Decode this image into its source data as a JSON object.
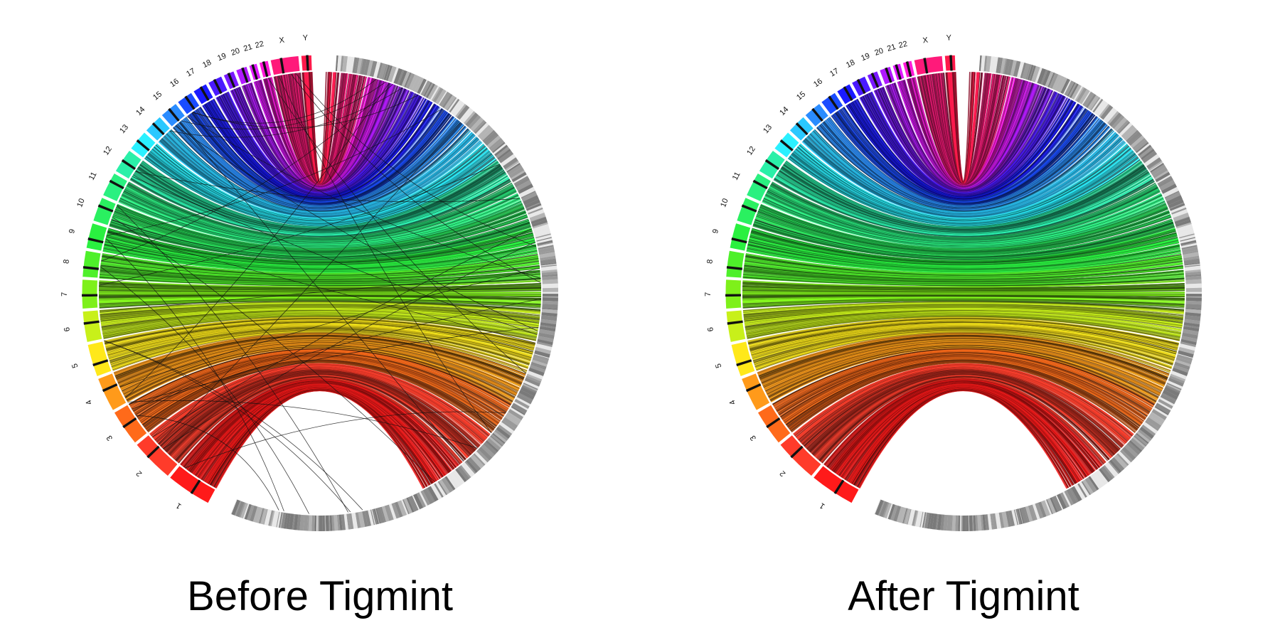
{
  "panels": [
    {
      "title": "Before Tigmint",
      "chromosomes": [
        "1",
        "2",
        "3",
        "4",
        "5",
        "6",
        "7",
        "8",
        "9",
        "10",
        "11",
        "12",
        "13",
        "14",
        "15",
        "16",
        "17",
        "18",
        "19",
        "20",
        "21",
        "22",
        "X",
        "Y"
      ],
      "misjoins_shown": true
    },
    {
      "title": "After Tigmint",
      "chromosomes": [
        "1",
        "2",
        "3",
        "4",
        "5",
        "6",
        "7",
        "8",
        "9",
        "10",
        "11",
        "12",
        "13",
        "14",
        "15",
        "16",
        "17",
        "18",
        "19",
        "20",
        "21",
        "22",
        "X",
        "Y"
      ],
      "misjoins_shown": false
    }
  ],
  "colors": {
    "chr1": "#ff1a1a",
    "chr2": "#ff3b2a",
    "chr3": "#ff6a1a",
    "chr4": "#ff9a1a",
    "chr5": "#ffe81a",
    "chr6": "#c8f01a",
    "chr7": "#7ef01a",
    "chr8": "#4ef02a",
    "chr9": "#2af040",
    "chr10": "#2af060",
    "chr11": "#2af080",
    "chr12": "#2af0a8",
    "chr13": "#2af0ff",
    "chr14": "#2ac8ff",
    "chr15": "#2a8cff",
    "chr16": "#1a4cff",
    "chr17": "#1a1aff",
    "chr18": "#4a1aff",
    "chr19": "#7a1aff",
    "chr20": "#b01aff",
    "chr21": "#e01aff",
    "chr22": "#ff1ad8",
    "chrX": "#ff1a7a",
    "chrY": "#ff1a4a",
    "scaffold_ring": "#9a9a9a",
    "misjoin_line": "#111111"
  }
}
